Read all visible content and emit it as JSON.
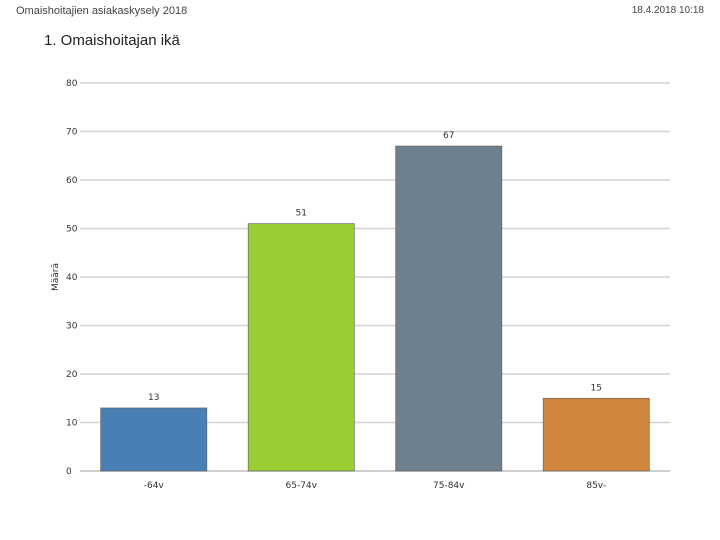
{
  "header": {
    "left_text": "Omaishoitajien asiakaskysely 2018",
    "right_text": "18.4.2018 10:18"
  },
  "chart_data": {
    "type": "bar",
    "title": "1. Omaishoitajan ikä",
    "xlabel": "",
    "ylabel": "Määrä",
    "categories": [
      "-64v",
      "65-74v",
      "75-84v",
      "85v-"
    ],
    "values": [
      13,
      51,
      67,
      15
    ],
    "bar_colors": [
      "#4a7fb5",
      "#9acd32",
      "#6e7f8d",
      "#cf873f"
    ],
    "ylim": [
      0,
      80
    ],
    "yticks": [
      0,
      10,
      20,
      30,
      40,
      50,
      60,
      70,
      80
    ],
    "grid": true,
    "data_labels": true
  }
}
